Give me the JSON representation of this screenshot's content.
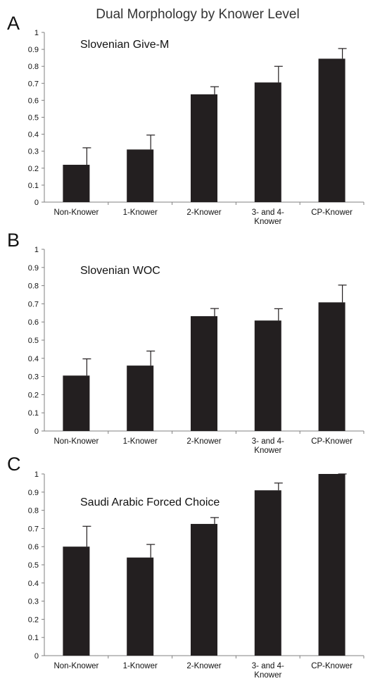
{
  "figure_title": "Dual Morphology by Knower Level",
  "chart_data": [
    {
      "type": "bar",
      "panel": "A",
      "title": "Slovenian Give-M",
      "categories": [
        "Non-Knower",
        "1-Knower",
        "2-Knower",
        "3- and 4-Knower",
        "CP-Knower"
      ],
      "category_lines": [
        [
          "Non-Knower"
        ],
        [
          "1-Knower"
        ],
        [
          "2-Knower"
        ],
        [
          "3- and 4-",
          "Knower"
        ],
        [
          "CP-Knower"
        ]
      ],
      "values": [
        0.22,
        0.31,
        0.635,
        0.705,
        0.845
      ],
      "errors": [
        0.1,
        0.085,
        0.045,
        0.095,
        0.06
      ],
      "ylim": [
        0,
        1
      ],
      "yticks": [
        "0",
        "0.1",
        "0.2",
        "0.3",
        "0.4",
        "0.5",
        "0.6",
        "0.7",
        "0.8",
        "0.9",
        "1"
      ],
      "xlabel": "",
      "ylabel": "",
      "grid": false,
      "bar_color": "#231f20"
    },
    {
      "type": "bar",
      "panel": "B",
      "title": "Slovenian WOC",
      "categories": [
        "Non-Knower",
        "1-Knower",
        "2-Knower",
        "3- and 4-Knower",
        "CP-Knower"
      ],
      "category_lines": [
        [
          "Non-Knower"
        ],
        [
          "1-Knower"
        ],
        [
          "2-Knower"
        ],
        [
          "3- and 4-",
          "Knower"
        ],
        [
          "CP-Knower"
        ]
      ],
      "values": [
        0.305,
        0.36,
        0.632,
        0.608,
        0.708
      ],
      "errors": [
        0.092,
        0.08,
        0.042,
        0.065,
        0.095
      ],
      "ylim": [
        0,
        1
      ],
      "yticks": [
        "0",
        "0.1",
        "0.2",
        "0.3",
        "0.4",
        "0.5",
        "0.6",
        "0.7",
        "0.8",
        "0.9",
        "1"
      ],
      "xlabel": "",
      "ylabel": "",
      "grid": false,
      "bar_color": "#231f20"
    },
    {
      "type": "bar",
      "panel": "C",
      "title": "Saudi Arabic Forced Choice",
      "categories": [
        "Non-Knower",
        "1-Knower",
        "2-Knower",
        "3- and 4-Knower",
        "CP-Knower"
      ],
      "category_lines": [
        [
          "Non-Knower"
        ],
        [
          "1-Knower"
        ],
        [
          "2-Knower"
        ],
        [
          "3- and 4-",
          "Knower"
        ],
        [
          "CP-Knower"
        ]
      ],
      "values": [
        0.6,
        0.54,
        0.725,
        0.91,
        1.0
      ],
      "errors": [
        0.112,
        0.072,
        0.035,
        0.04,
        0.0
      ],
      "ylim": [
        0,
        1
      ],
      "yticks": [
        "0",
        "0.1",
        "0.2",
        "0.3",
        "0.4",
        "0.5",
        "0.6",
        "0.7",
        "0.8",
        "0.9",
        "1"
      ],
      "xlabel": "",
      "ylabel": "",
      "grid": false,
      "bar_color": "#231f20"
    }
  ]
}
